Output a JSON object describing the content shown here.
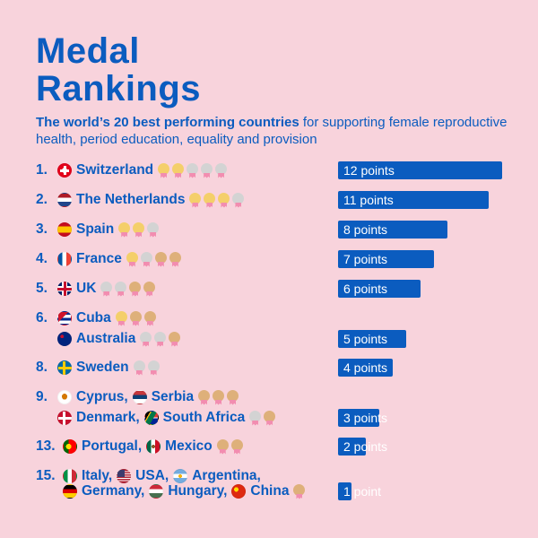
{
  "title": "Medal Rankings",
  "subtitle_bold": "The world’s 20 best performing countries",
  "subtitle_rest": " for supporting female reproductive health, period education, equality and provision",
  "colors": {
    "background": "#f8d3dc",
    "accent": "#0b5cbf",
    "gold": "#f4cf6a",
    "silver": "#d3d3d3",
    "bronze": "#deb07a",
    "ribbon": "#f28db0"
  },
  "chart_data": {
    "type": "bar",
    "xlim": [
      0,
      12
    ],
    "groups": [
      {
        "rank": "1.",
        "points": 12,
        "points_label": "12 points",
        "lines": [
          {
            "entries": [
              {
                "name": "Switzerland",
                "flag": "switzerland-flag"
              }
            ],
            "medals": [
              "gold",
              "gold",
              "silver",
              "silver",
              "silver"
            ]
          }
        ]
      },
      {
        "rank": "2.",
        "points": 11,
        "points_label": "11 points",
        "lines": [
          {
            "entries": [
              {
                "name": "The Netherlands",
                "flag": "netherlands-flag"
              }
            ],
            "medals": [
              "gold",
              "gold",
              "gold",
              "silver"
            ]
          }
        ]
      },
      {
        "rank": "3.",
        "points": 8,
        "points_label": "8 points",
        "lines": [
          {
            "entries": [
              {
                "name": "Spain",
                "flag": "spain-flag"
              }
            ],
            "medals": [
              "gold",
              "gold",
              "silver"
            ]
          }
        ]
      },
      {
        "rank": "4.",
        "points": 7,
        "points_label": "7 points",
        "lines": [
          {
            "entries": [
              {
                "name": "France",
                "flag": "france-flag"
              }
            ],
            "medals": [
              "gold",
              "silver",
              "bronze",
              "bronze"
            ]
          }
        ]
      },
      {
        "rank": "5.",
        "points": 6,
        "points_label": "6 points",
        "lines": [
          {
            "entries": [
              {
                "name": "UK",
                "flag": "uk-flag"
              }
            ],
            "medals": [
              "silver",
              "silver",
              "bronze",
              "bronze"
            ]
          }
        ]
      },
      {
        "rank": "6.",
        "points": 5,
        "points_label": "5 points",
        "lines": [
          {
            "entries": [
              {
                "name": "Cuba",
                "flag": "cuba-flag"
              }
            ],
            "medals": [
              "gold",
              "bronze",
              "bronze"
            ]
          },
          {
            "entries": [
              {
                "name": "Australia",
                "flag": "australia-flag"
              }
            ],
            "medals": [
              "silver",
              "silver",
              "bronze"
            ]
          }
        ]
      },
      {
        "rank": "8.",
        "points": 4,
        "points_label": "4 points",
        "lines": [
          {
            "entries": [
              {
                "name": "Sweden",
                "flag": "sweden-flag"
              }
            ],
            "medals": [
              "silver",
              "silver"
            ]
          }
        ]
      },
      {
        "rank": "9.",
        "points": 3,
        "points_label": "3 points",
        "lines": [
          {
            "entries": [
              {
                "name": "Cyprus,",
                "flag": "cyprus-flag"
              },
              {
                "name": "Serbia",
                "flag": "serbia-flag"
              }
            ],
            "medals": [
              "bronze",
              "bronze",
              "bronze"
            ]
          },
          {
            "entries": [
              {
                "name": "Denmark,",
                "flag": "denmark-flag"
              },
              {
                "name": "South Africa",
                "flag": "south-africa-flag"
              }
            ],
            "medals": [
              "silver",
              "bronze"
            ]
          }
        ]
      },
      {
        "rank": "13.",
        "points": 2,
        "points_label": "2 points",
        "lines": [
          {
            "entries": [
              {
                "name": "Portugal,",
                "flag": "portugal-flag"
              },
              {
                "name": "Mexico",
                "flag": "mexico-flag"
              }
            ],
            "medals": [
              "bronze",
              "bronze"
            ]
          }
        ]
      },
      {
        "rank": "15.",
        "points": 1,
        "points_label": "1 point",
        "lines": [
          {
            "entries": [
              {
                "name": "Italy,",
                "flag": "italy-flag"
              },
              {
                "name": "USA,",
                "flag": "usa-flag"
              },
              {
                "name": "Argentina,",
                "flag": "argentina-flag"
              }
            ],
            "medals": []
          },
          {
            "entries": [
              {
                "name": "Germany,",
                "flag": "germany-flag"
              },
              {
                "name": "Hungary,",
                "flag": "hungary-flag"
              },
              {
                "name": "China",
                "flag": "china-flag"
              }
            ],
            "medals": [
              "bronze"
            ]
          }
        ]
      }
    ]
  }
}
